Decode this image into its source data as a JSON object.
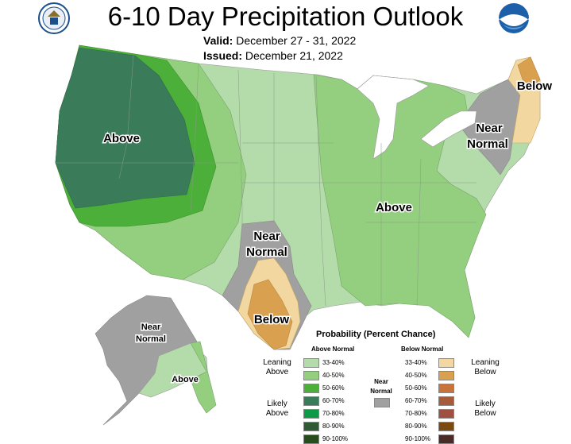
{
  "title": "6-10 Day Precipitation Outlook",
  "valid_label": "Valid:",
  "valid_text": "December 27 - 31, 2022",
  "issued_label": "Issued:",
  "issued_text": "December 21, 2022",
  "logos": {
    "left": "commerce-seal",
    "right": "noaa-logo"
  },
  "map_labels": {
    "west_above": "Above",
    "east_above": "Above",
    "tx_near_1": "Near",
    "tx_near_2": "Normal",
    "tx_below": "Below",
    "ne_near_1": "Near",
    "ne_near_2": "Normal",
    "ne_below": "Below",
    "ak_near_1": "Near",
    "ak_near_2": "Normal",
    "ak_above": "Above"
  },
  "colors": {
    "above_33_40": "#b3dcaa",
    "above_40_50": "#93cf7f",
    "above_50_60": "#4caf3a",
    "above_60_70": "#3a7c5a",
    "above_70_80": "#0b9a45",
    "above_80_90": "#2f5a34",
    "above_90_100": "#284d1c",
    "below_33_40": "#f2d7a0",
    "below_40_50": "#d9a14f",
    "below_50_60": "#c8733a",
    "below_60_70": "#a65c3a",
    "below_70_80": "#a05040",
    "below_80_90": "#7a4a10",
    "below_90_100": "#4a2a24",
    "near_normal": "#a0a0a0"
  },
  "legend": {
    "title": "Probability (Percent Chance)",
    "above_header": "Above Normal",
    "below_header": "Below Normal",
    "near_label_1": "Near",
    "near_label_2": "Normal",
    "leaning_above_1": "Leaning",
    "leaning_above_2": "Above",
    "likely_above_1": "Likely",
    "likely_above_2": "Above",
    "leaning_below_1": "Leaning",
    "leaning_below_2": "Below",
    "likely_below_1": "Likely",
    "likely_below_2": "Below",
    "ranges": [
      "33-40%",
      "40-50%",
      "50-60%",
      "60-70%",
      "70-80%",
      "80-90%",
      "90-100%"
    ]
  }
}
